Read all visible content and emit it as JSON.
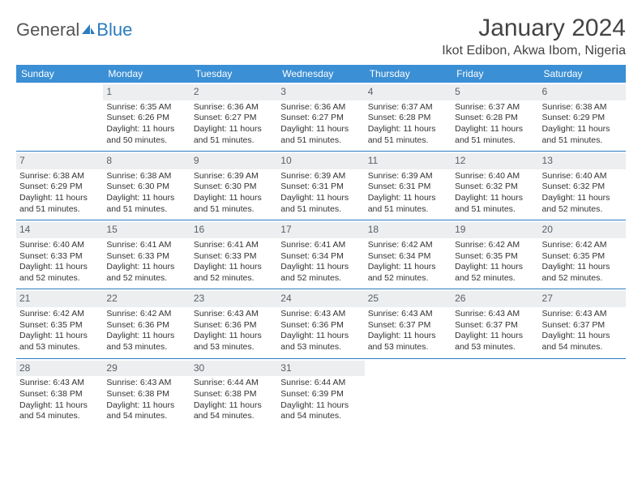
{
  "brand": {
    "name_a": "General",
    "name_b": "Blue"
  },
  "title": "January 2024",
  "location": "Ikot Edibon, Akwa Ibom, Nigeria",
  "colors": {
    "header_bg": "#3b8fd4",
    "header_text": "#ffffff",
    "rule": "#2b7cc0",
    "daynum_bg": "#eceef0",
    "daynum_text": "#5a5f66",
    "body_text": "#333333",
    "title_text": "#444444"
  },
  "typography": {
    "title_fontsize": 30,
    "location_fontsize": 16,
    "dow_fontsize": 12,
    "daynum_fontsize": 12,
    "cell_fontsize": 10.5
  },
  "layout": {
    "cols": 7,
    "rows": 5,
    "first_weekday": "Sunday"
  },
  "dow": [
    "Sunday",
    "Monday",
    "Tuesday",
    "Wednesday",
    "Thursday",
    "Friday",
    "Saturday"
  ],
  "weeks": [
    [
      {
        "n": "",
        "sunrise": "",
        "sunset": "",
        "daylight": ""
      },
      {
        "n": "1",
        "sunrise": "Sunrise: 6:35 AM",
        "sunset": "Sunset: 6:26 PM",
        "daylight": "Daylight: 11 hours and 50 minutes."
      },
      {
        "n": "2",
        "sunrise": "Sunrise: 6:36 AM",
        "sunset": "Sunset: 6:27 PM",
        "daylight": "Daylight: 11 hours and 51 minutes."
      },
      {
        "n": "3",
        "sunrise": "Sunrise: 6:36 AM",
        "sunset": "Sunset: 6:27 PM",
        "daylight": "Daylight: 11 hours and 51 minutes."
      },
      {
        "n": "4",
        "sunrise": "Sunrise: 6:37 AM",
        "sunset": "Sunset: 6:28 PM",
        "daylight": "Daylight: 11 hours and 51 minutes."
      },
      {
        "n": "5",
        "sunrise": "Sunrise: 6:37 AM",
        "sunset": "Sunset: 6:28 PM",
        "daylight": "Daylight: 11 hours and 51 minutes."
      },
      {
        "n": "6",
        "sunrise": "Sunrise: 6:38 AM",
        "sunset": "Sunset: 6:29 PM",
        "daylight": "Daylight: 11 hours and 51 minutes."
      }
    ],
    [
      {
        "n": "7",
        "sunrise": "Sunrise: 6:38 AM",
        "sunset": "Sunset: 6:29 PM",
        "daylight": "Daylight: 11 hours and 51 minutes."
      },
      {
        "n": "8",
        "sunrise": "Sunrise: 6:38 AM",
        "sunset": "Sunset: 6:30 PM",
        "daylight": "Daylight: 11 hours and 51 minutes."
      },
      {
        "n": "9",
        "sunrise": "Sunrise: 6:39 AM",
        "sunset": "Sunset: 6:30 PM",
        "daylight": "Daylight: 11 hours and 51 minutes."
      },
      {
        "n": "10",
        "sunrise": "Sunrise: 6:39 AM",
        "sunset": "Sunset: 6:31 PM",
        "daylight": "Daylight: 11 hours and 51 minutes."
      },
      {
        "n": "11",
        "sunrise": "Sunrise: 6:39 AM",
        "sunset": "Sunset: 6:31 PM",
        "daylight": "Daylight: 11 hours and 51 minutes."
      },
      {
        "n": "12",
        "sunrise": "Sunrise: 6:40 AM",
        "sunset": "Sunset: 6:32 PM",
        "daylight": "Daylight: 11 hours and 51 minutes."
      },
      {
        "n": "13",
        "sunrise": "Sunrise: 6:40 AM",
        "sunset": "Sunset: 6:32 PM",
        "daylight": "Daylight: 11 hours and 52 minutes."
      }
    ],
    [
      {
        "n": "14",
        "sunrise": "Sunrise: 6:40 AM",
        "sunset": "Sunset: 6:33 PM",
        "daylight": "Daylight: 11 hours and 52 minutes."
      },
      {
        "n": "15",
        "sunrise": "Sunrise: 6:41 AM",
        "sunset": "Sunset: 6:33 PM",
        "daylight": "Daylight: 11 hours and 52 minutes."
      },
      {
        "n": "16",
        "sunrise": "Sunrise: 6:41 AM",
        "sunset": "Sunset: 6:33 PM",
        "daylight": "Daylight: 11 hours and 52 minutes."
      },
      {
        "n": "17",
        "sunrise": "Sunrise: 6:41 AM",
        "sunset": "Sunset: 6:34 PM",
        "daylight": "Daylight: 11 hours and 52 minutes."
      },
      {
        "n": "18",
        "sunrise": "Sunrise: 6:42 AM",
        "sunset": "Sunset: 6:34 PM",
        "daylight": "Daylight: 11 hours and 52 minutes."
      },
      {
        "n": "19",
        "sunrise": "Sunrise: 6:42 AM",
        "sunset": "Sunset: 6:35 PM",
        "daylight": "Daylight: 11 hours and 52 minutes."
      },
      {
        "n": "20",
        "sunrise": "Sunrise: 6:42 AM",
        "sunset": "Sunset: 6:35 PM",
        "daylight": "Daylight: 11 hours and 52 minutes."
      }
    ],
    [
      {
        "n": "21",
        "sunrise": "Sunrise: 6:42 AM",
        "sunset": "Sunset: 6:35 PM",
        "daylight": "Daylight: 11 hours and 53 minutes."
      },
      {
        "n": "22",
        "sunrise": "Sunrise: 6:42 AM",
        "sunset": "Sunset: 6:36 PM",
        "daylight": "Daylight: 11 hours and 53 minutes."
      },
      {
        "n": "23",
        "sunrise": "Sunrise: 6:43 AM",
        "sunset": "Sunset: 6:36 PM",
        "daylight": "Daylight: 11 hours and 53 minutes."
      },
      {
        "n": "24",
        "sunrise": "Sunrise: 6:43 AM",
        "sunset": "Sunset: 6:36 PM",
        "daylight": "Daylight: 11 hours and 53 minutes."
      },
      {
        "n": "25",
        "sunrise": "Sunrise: 6:43 AM",
        "sunset": "Sunset: 6:37 PM",
        "daylight": "Daylight: 11 hours and 53 minutes."
      },
      {
        "n": "26",
        "sunrise": "Sunrise: 6:43 AM",
        "sunset": "Sunset: 6:37 PM",
        "daylight": "Daylight: 11 hours and 53 minutes."
      },
      {
        "n": "27",
        "sunrise": "Sunrise: 6:43 AM",
        "sunset": "Sunset: 6:37 PM",
        "daylight": "Daylight: 11 hours and 54 minutes."
      }
    ],
    [
      {
        "n": "28",
        "sunrise": "Sunrise: 6:43 AM",
        "sunset": "Sunset: 6:38 PM",
        "daylight": "Daylight: 11 hours and 54 minutes."
      },
      {
        "n": "29",
        "sunrise": "Sunrise: 6:43 AM",
        "sunset": "Sunset: 6:38 PM",
        "daylight": "Daylight: 11 hours and 54 minutes."
      },
      {
        "n": "30",
        "sunrise": "Sunrise: 6:44 AM",
        "sunset": "Sunset: 6:38 PM",
        "daylight": "Daylight: 11 hours and 54 minutes."
      },
      {
        "n": "31",
        "sunrise": "Sunrise: 6:44 AM",
        "sunset": "Sunset: 6:39 PM",
        "daylight": "Daylight: 11 hours and 54 minutes."
      },
      {
        "n": "",
        "sunrise": "",
        "sunset": "",
        "daylight": ""
      },
      {
        "n": "",
        "sunrise": "",
        "sunset": "",
        "daylight": ""
      },
      {
        "n": "",
        "sunrise": "",
        "sunset": "",
        "daylight": ""
      }
    ]
  ]
}
